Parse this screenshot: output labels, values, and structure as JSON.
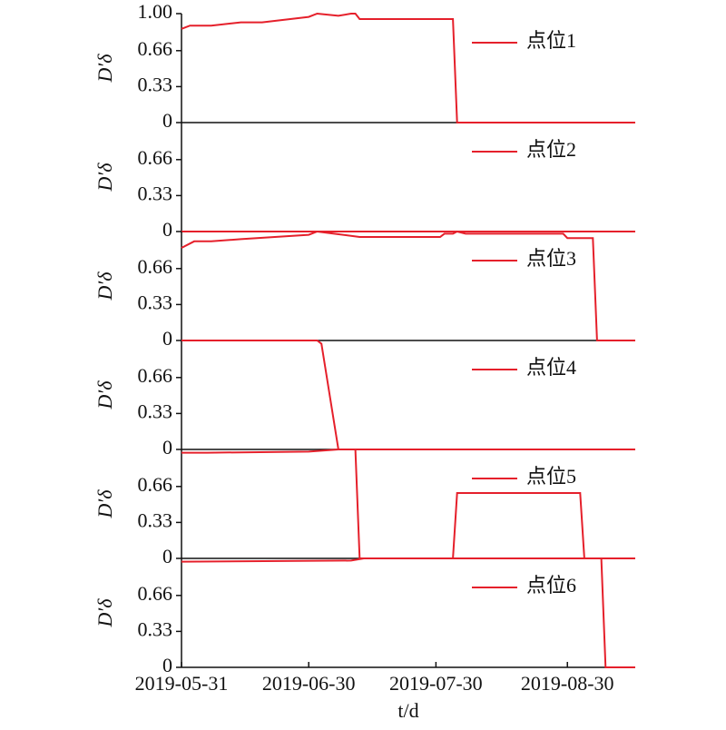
{
  "chart_data": [
    {
      "type": "line",
      "ylabel": "D′δ",
      "xlim": [
        "2019-05-31",
        "2019-09-15"
      ],
      "ylim": [
        0,
        1
      ],
      "yticks": [
        0,
        0.33,
        0.66,
        {
          "value": 1,
          "label": "1.00"
        }
      ],
      "legend": "upper right",
      "series": [
        {
          "name": "点位1",
          "color": "#e5202b",
          "x": [
            "2019-05-31",
            "2019-06-02",
            "2019-06-07",
            "2019-06-14",
            "2019-06-19",
            "2019-06-30",
            "2019-07-02",
            "2019-07-07",
            "2019-07-10",
            "2019-07-11",
            "2019-07-12",
            "2019-08-03",
            "2019-08-04",
            "2019-09-15"
          ],
          "values": [
            0.86,
            0.89,
            0.89,
            0.92,
            0.92,
            0.97,
            1.0,
            0.98,
            1.0,
            1.0,
            0.95,
            0.95,
            0,
            0
          ]
        }
      ]
    },
    {
      "type": "line",
      "ylabel": "D′δ",
      "xlim": [
        "2019-05-31",
        "2019-09-15"
      ],
      "ylim": [
        0,
        1
      ],
      "yticks": [
        0,
        0.33,
        0.66
      ],
      "legend": "upper right",
      "series": [
        {
          "name": "点位2",
          "color": "#e5202b",
          "x": [
            "2019-05-31",
            "2019-09-15"
          ],
          "values": [
            0,
            0
          ]
        }
      ]
    },
    {
      "type": "line",
      "ylabel": "D′δ",
      "xlim": [
        "2019-05-31",
        "2019-09-15"
      ],
      "ylim": [
        0,
        1
      ],
      "yticks": [
        0,
        0.33,
        0.66
      ],
      "legend": "upper right",
      "series": [
        {
          "name": "点位3",
          "color": "#e5202b",
          "x": [
            "2019-05-31",
            "2019-06-03",
            "2019-06-07",
            "2019-06-14",
            "2019-06-30",
            "2019-07-02",
            "2019-07-06",
            "2019-07-12",
            "2019-07-31",
            "2019-08-01",
            "2019-08-03",
            "2019-08-04",
            "2019-08-06",
            "2019-08-29",
            "2019-08-30",
            "2019-09-05",
            "2019-09-06",
            "2019-09-15"
          ],
          "values": [
            0.85,
            0.91,
            0.91,
            0.93,
            0.97,
            1.0,
            0.98,
            0.95,
            0.95,
            0.98,
            0.98,
            1.0,
            0.98,
            0.98,
            0.94,
            0.94,
            0,
            0
          ]
        }
      ]
    },
    {
      "type": "line",
      "ylabel": "D′δ",
      "xlim": [
        "2019-05-31",
        "2019-09-15"
      ],
      "ylim": [
        0,
        1
      ],
      "yticks": [
        0,
        0.33,
        0.66
      ],
      "legend": "upper right",
      "series": [
        {
          "name": "点位4",
          "color": "#e5202b",
          "x": [
            "2019-05-31",
            "2019-07-02",
            "2019-07-03",
            "2019-07-07",
            "2019-09-15"
          ],
          "values": [
            1.0,
            1.0,
            0.97,
            0,
            0
          ]
        }
      ]
    },
    {
      "type": "line",
      "ylabel": "D′δ",
      "xlim": [
        "2019-05-31",
        "2019-09-15"
      ],
      "ylim": [
        0,
        1
      ],
      "yticks": [
        0,
        0.33,
        0.66
      ],
      "legend": "upper right",
      "series": [
        {
          "name": "点位5",
          "color": "#e5202b",
          "x": [
            "2019-05-31",
            "2019-06-06",
            "2019-06-30",
            "2019-07-07",
            "2019-07-11",
            "2019-07-12",
            "2019-08-03",
            "2019-08-04",
            "2019-09-02",
            "2019-09-03",
            "2019-09-15"
          ],
          "values": [
            0.97,
            0.97,
            0.98,
            1.0,
            1.0,
            0,
            0,
            0.6,
            0.6,
            0,
            0
          ]
        }
      ]
    },
    {
      "type": "line",
      "ylabel": "D′δ",
      "xlabel": "t/d",
      "xlim": [
        "2019-05-31",
        "2019-09-15"
      ],
      "ylim": [
        0,
        1
      ],
      "yticks": [
        0,
        0.33,
        0.66
      ],
      "xticks": [
        "2019-05-31",
        "2019-06-30",
        "2019-07-30",
        "2019-08-30"
      ],
      "legend": "upper right",
      "series": [
        {
          "name": "点位6",
          "color": "#e5202b",
          "x": [
            "2019-05-31",
            "2019-07-10",
            "2019-07-13",
            "2019-09-07",
            "2019-09-08",
            "2019-09-15"
          ],
          "values": [
            0.97,
            0.98,
            1.0,
            1.0,
            0,
            0
          ]
        }
      ]
    }
  ]
}
